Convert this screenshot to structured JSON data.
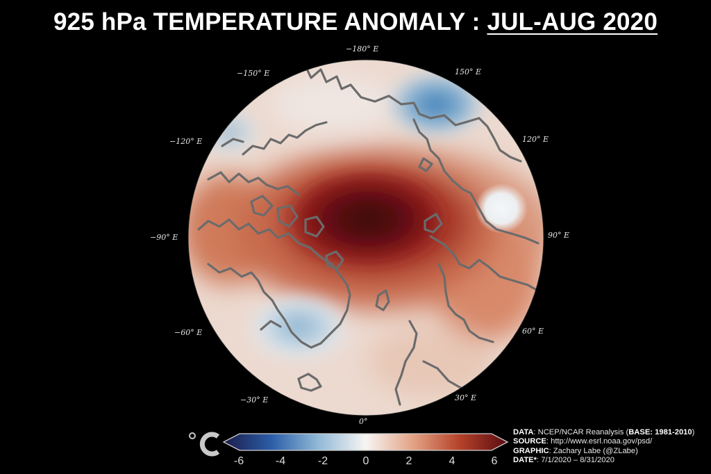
{
  "title": {
    "prefix": "925 hPa TEMPERATURE ANOMALY : ",
    "period": "JUL-AUG 2020"
  },
  "map": {
    "projection": "north-polar-stereographic",
    "longitude_labels": [
      {
        "id": "lon-m180",
        "text": "−180° E"
      },
      {
        "id": "lon-150",
        "text": "150° E"
      },
      {
        "id": "lon-m150",
        "text": "−150° E"
      },
      {
        "id": "lon-120",
        "text": "120° E"
      },
      {
        "id": "lon-m120",
        "text": "−120° E"
      },
      {
        "id": "lon-90",
        "text": "90° E"
      },
      {
        "id": "lon-m90",
        "text": "−90° E"
      },
      {
        "id": "lon-60",
        "text": "60° E"
      },
      {
        "id": "lon-m60",
        "text": "−60° E"
      },
      {
        "id": "lon-30",
        "text": "30° E"
      },
      {
        "id": "lon-m30",
        "text": "−30° E"
      },
      {
        "id": "lon-0",
        "text": "0°"
      }
    ],
    "anomaly_regions": [
      {
        "name": "central-arctic-warm-max",
        "sign": "warm",
        "value_c": 6
      },
      {
        "name": "north-pacific-cold-patch",
        "sign": "cold",
        "value_c": -2.5
      },
      {
        "name": "greenland-cold-patch",
        "sign": "cold",
        "value_c": -1.5
      },
      {
        "name": "siberia-neutral-patch",
        "sign": "neutral",
        "value_c": 0
      }
    ],
    "coastline_color": "#6b6b6b"
  },
  "colorbar": {
    "unit": "°C",
    "min": -6,
    "max": 6,
    "ticks": [
      "-6",
      "-4",
      "-2",
      "0",
      "2",
      "4",
      "6"
    ],
    "colors": [
      "#1a1c4a",
      "#2c5ea8",
      "#8fb8d6",
      "#f7f5f3",
      "#e2a184",
      "#b5432a",
      "#5a0b12"
    ]
  },
  "credits": {
    "data_label": "DATA",
    "data_text": ": NCEP/NCAR Reanalysis (",
    "base_label": "BASE: 1981-2010",
    "data_close": ")",
    "source_label": "SOURCE",
    "source_text": ": http://www.esrl.noaa.gov/psd/",
    "graphic_label": "GRAPHIC",
    "graphic_text": ": Zachary Labe (@ZLabe)",
    "date_label": "DATE*",
    "date_text": ": 7/1/2020 – 8/31/2020"
  }
}
